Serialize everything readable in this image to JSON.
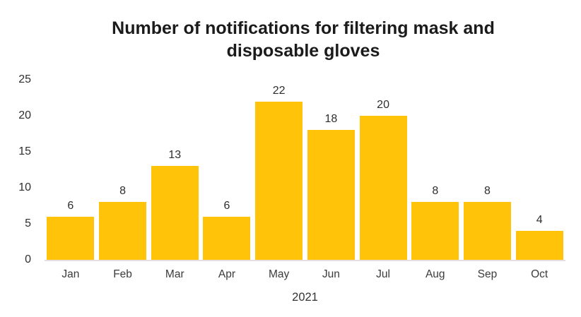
{
  "chart_data": {
    "type": "bar",
    "title": "Number of notifications for filtering mask and disposable gloves",
    "title_line1": "Number of notifications for filtering mask and",
    "title_line2": "disposable gloves",
    "categories": [
      "Jan",
      "Feb",
      "Mar",
      "Apr",
      "May",
      "Jun",
      "Jul",
      "Aug",
      "Sep",
      "Oct"
    ],
    "values": [
      6,
      8,
      13,
      6,
      22,
      18,
      20,
      8,
      8,
      4
    ],
    "xlabel": "2021",
    "ylabel": "",
    "ylim": [
      0,
      25
    ],
    "yticks": [
      0,
      5,
      10,
      15,
      20,
      25
    ],
    "grid": false,
    "legend_position": "none",
    "data_labels_visible": true,
    "bar_color": "#FFC40A",
    "axis_line_color": "#E7DEE4",
    "title_color": "#1B1B1B",
    "tick_label_color": "#2E2E2E"
  }
}
